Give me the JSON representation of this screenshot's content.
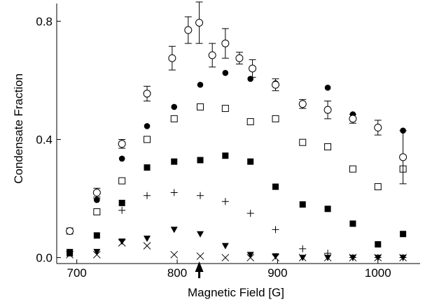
{
  "chart_data": {
    "type": "scatter",
    "title": "",
    "xlabel": "Magnetic Field [G]",
    "ylabel": "Condensate Fraction",
    "xlim": [
      680,
      1042
    ],
    "ylim": [
      -0.02,
      0.86
    ],
    "xticks": [
      700,
      800,
      900,
      1000
    ],
    "yticks": [
      0.0,
      0.4,
      0.8
    ],
    "xtick_labels": [
      "700",
      "800",
      "900",
      "1000"
    ],
    "ytick_labels": [
      "0.0",
      "0.4",
      "0.8"
    ],
    "grid": false,
    "legend": "none",
    "annotation": {
      "type": "arrow",
      "x": 822,
      "direction": "up",
      "at": "x-axis"
    },
    "series": [
      {
        "marker": "open-circle",
        "x": [
          693,
          720,
          745,
          770,
          795,
          811,
          822,
          835,
          848,
          862,
          875,
          898,
          925,
          950,
          975,
          1000,
          1025
        ],
        "y": [
          0.09,
          0.22,
          0.385,
          0.555,
          0.675,
          0.77,
          0.795,
          0.685,
          0.725,
          0.675,
          0.64,
          0.585,
          0.52,
          0.5,
          0.47,
          0.44,
          0.34
        ],
        "err": [
          0.01,
          0.015,
          0.015,
          0.025,
          0.04,
          0.045,
          0.07,
          0.04,
          0.05,
          0.02,
          0.03,
          0.02,
          0.015,
          0.03,
          0.015,
          0.025,
          0.09
        ]
      },
      {
        "marker": "filled-circle",
        "x": [
          720,
          745,
          770,
          797,
          823,
          848,
          873,
          898,
          925,
          950,
          975,
          1000,
          1025
        ],
        "y": [
          0.195,
          0.335,
          0.445,
          0.51,
          0.585,
          0.625,
          0.605,
          0.59,
          0.52,
          0.575,
          0.485,
          0.44,
          0.43
        ]
      },
      {
        "marker": "open-square",
        "x": [
          720,
          745,
          770,
          797,
          823,
          848,
          873,
          898,
          925,
          950,
          975,
          1000,
          1025
        ],
        "y": [
          0.155,
          0.26,
          0.4,
          0.47,
          0.51,
          0.505,
          0.46,
          0.47,
          0.39,
          0.375,
          0.3,
          0.24,
          0.3
        ]
      },
      {
        "marker": "filled-square",
        "x": [
          693,
          720,
          745,
          770,
          797,
          823,
          848,
          873,
          898,
          925,
          950,
          975,
          1000,
          1025
        ],
        "y": [
          0.015,
          0.075,
          0.185,
          0.305,
          0.325,
          0.33,
          0.345,
          0.325,
          0.24,
          0.18,
          0.165,
          0.115,
          0.045,
          0.08
        ]
      },
      {
        "marker": "plus",
        "x": [
          720,
          745,
          770,
          797,
          823,
          848,
          873,
          898,
          925,
          950,
          975,
          1000,
          1025
        ],
        "y": [
          0.2,
          0.16,
          0.21,
          0.22,
          0.21,
          0.19,
          0.15,
          0.095,
          0.03,
          0.015,
          0.0,
          0.0,
          0.0
        ]
      },
      {
        "marker": "filled-triangle-down",
        "x": [
          693,
          720,
          745,
          770,
          797,
          823,
          848,
          873,
          898,
          925,
          950,
          975,
          1000,
          1025
        ],
        "y": [
          0.02,
          0.02,
          0.055,
          0.065,
          0.095,
          0.08,
          0.04,
          0.01,
          0.005,
          0.0,
          0.0,
          0.0,
          0.0,
          0.0
        ]
      },
      {
        "marker": "cross",
        "x": [
          693,
          720,
          745,
          770,
          797,
          823,
          848,
          873,
          898,
          925,
          950,
          975,
          1000,
          1025
        ],
        "y": [
          0.01,
          0.01,
          0.05,
          0.04,
          0.01,
          0.005,
          0.0,
          0.0,
          0.0,
          0.0,
          0.0,
          0.0,
          0.0,
          0.0
        ]
      }
    ]
  }
}
